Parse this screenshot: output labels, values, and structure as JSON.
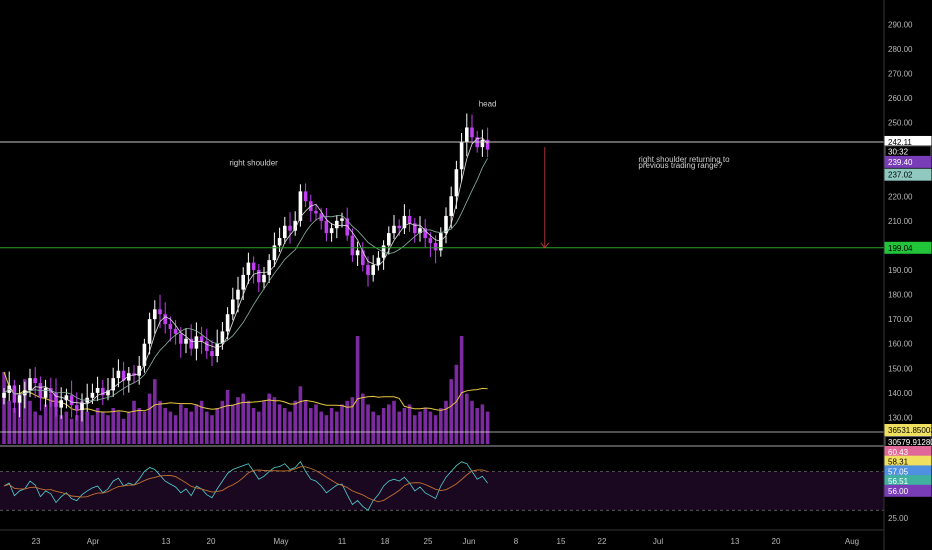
{
  "colors": {
    "background": "#000000",
    "candle_up": "#ffffff",
    "candle_down": "#c03ff0",
    "ma_fast": "#e0e0e0",
    "ma_slow": "#8ab4a0",
    "volume": "#8a2fb0",
    "volume_ma": "#e8c840",
    "support_line": "#2ca02c",
    "resistance_line": "#c8c8c8",
    "arrow": "#d04040",
    "rsi_band_fill": "#1a0820",
    "rsi_line_1": "#4fd0d0",
    "rsi_line_2": "#c07030"
  },
  "chart_data": [
    {
      "type": "candlestick",
      "title": "",
      "ylim": [
        120,
        295
      ],
      "y_ticks": [
        120,
        130,
        140,
        150,
        160,
        170,
        180,
        190,
        200,
        210,
        220,
        230,
        240,
        250,
        260,
        270,
        280,
        290
      ],
      "y_tick_labels": [
        "120.00",
        "130.00",
        "140.00",
        "150.00",
        "160.00",
        "170.00",
        "180.00",
        "190.00",
        "200.00",
        "210.00",
        "220.00",
        "230.00",
        "240.00",
        "250.00",
        "260.00",
        "270.00",
        "280.00",
        "290.00"
      ],
      "x_tick_labels": [
        "23",
        "Apr",
        "13",
        "20",
        "May",
        "11",
        "18",
        "25",
        "Jun",
        "8",
        "15",
        "22",
        "Jul",
        "13",
        "20",
        "Aug"
      ],
      "horizontal_lines": [
        {
          "name": "resistance",
          "value": 242.11
        },
        {
          "name": "support",
          "value": 199.04
        }
      ],
      "price_tags": [
        {
          "label": "242.11",
          "value": 242.11,
          "bg": "#ffffff",
          "fg": "#000000"
        },
        {
          "label": "30:32",
          "value": 238.3,
          "bg": "#000000",
          "fg": "#ffffff"
        },
        {
          "label": "239.40",
          "value": 234.0,
          "bg": "#7a3db8",
          "fg": "#ffffff"
        },
        {
          "label": "237.02",
          "value": 228.8,
          "bg": "#8fc9c0",
          "fg": "#000000"
        },
        {
          "label": "199.04",
          "value": 199.04,
          "bg": "#22c43a",
          "fg": "#000000"
        }
      ],
      "annotations": [
        {
          "text": "head",
          "x_index": 93,
          "y": 256.5
        },
        {
          "text": "right shoulder",
          "x_index": 48,
          "y": 232.5
        },
        {
          "text": "right shoulder returning to",
          "x_index": 122,
          "y": 234
        },
        {
          "text": "previous trading range?",
          "x_index": 122,
          "y": 231.5
        }
      ],
      "arrow": {
        "x_index": 104,
        "from": 240,
        "to": 199
      },
      "series": [
        {
          "name": "price",
          "close": [
            140,
            143,
            136,
            139,
            141,
            146,
            144,
            138,
            142,
            140,
            134,
            137,
            139,
            135,
            133,
            136,
            138,
            140,
            142,
            139,
            141,
            146,
            149,
            145,
            148,
            147,
            151,
            160,
            170,
            174,
            172,
            168,
            166,
            164,
            160,
            162,
            158,
            163,
            161,
            157,
            155,
            160,
            165,
            172,
            178,
            182,
            188,
            193,
            190,
            185,
            188,
            194,
            200,
            203,
            208,
            206,
            210,
            222,
            218,
            214,
            213,
            210,
            205,
            207,
            210,
            211,
            204,
            196,
            198,
            192,
            188,
            192,
            195,
            200,
            205,
            208,
            207,
            212,
            209,
            205,
            207,
            203,
            201,
            198,
            205,
            212,
            220,
            231,
            242,
            248,
            244,
            240,
            243,
            239
          ]
        }
      ]
    },
    {
      "type": "bar",
      "title": "",
      "y_tag_labels": [
        "36531.850037",
        "30579.912807"
      ],
      "values": [
        20,
        12,
        10,
        14,
        18,
        12,
        9,
        8,
        11,
        14,
        10,
        8,
        9,
        7,
        8,
        12,
        9,
        8,
        10,
        9,
        8,
        10,
        9,
        7,
        9,
        12,
        10,
        9,
        14,
        18,
        12,
        10,
        9,
        8,
        11,
        10,
        9,
        11,
        12,
        9,
        8,
        10,
        12,
        15,
        11,
        13,
        14,
        12,
        10,
        9,
        12,
        14,
        13,
        11,
        10,
        9,
        12,
        16,
        12,
        10,
        11,
        9,
        8,
        10,
        9,
        11,
        12,
        13,
        30,
        14,
        11,
        9,
        8,
        10,
        11,
        12,
        9,
        10,
        11,
        8,
        9,
        10,
        9,
        8,
        10,
        12,
        18,
        22,
        30,
        14,
        12,
        10,
        11,
        9
      ]
    },
    {
      "type": "line",
      "title": "",
      "y_tick_labels": [
        "25.00"
      ],
      "tags": [
        {
          "label": "60.43",
          "bg": "#e06898",
          "fg": "#ffffff"
        },
        {
          "label": "58.31",
          "bg": "#f0e060",
          "fg": "#000000"
        },
        {
          "label": "57.05",
          "bg": "#5090e0",
          "fg": "#ffffff"
        },
        {
          "label": "56.51",
          "bg": "#40b0a0",
          "fg": "#ffffff"
        },
        {
          "label": "56.00",
          "bg": "#7a3db8",
          "fg": "#ffffff"
        }
      ],
      "bands": [
        70,
        30
      ],
      "series": [
        {
          "name": "rsi",
          "values": [
            55,
            58,
            45,
            50,
            52,
            60,
            56,
            44,
            50,
            47,
            38,
            44,
            48,
            42,
            40,
            46,
            50,
            53,
            55,
            48,
            52,
            60,
            63,
            55,
            58,
            56,
            62,
            70,
            74,
            72,
            66,
            60,
            57,
            54,
            48,
            52,
            45,
            55,
            52,
            46,
            43,
            52,
            60,
            68,
            72,
            74,
            76,
            78,
            70,
            62,
            65,
            70,
            74,
            75,
            78,
            72,
            74,
            80,
            70,
            62,
            60,
            55,
            48,
            52,
            56,
            57,
            46,
            36,
            40,
            34,
            30,
            40,
            46,
            55,
            60,
            62,
            60,
            64,
            58,
            50,
            54,
            48,
            45,
            42,
            55,
            64,
            70,
            76,
            80,
            78,
            70,
            62,
            65,
            58
          ]
        }
      ]
    }
  ]
}
